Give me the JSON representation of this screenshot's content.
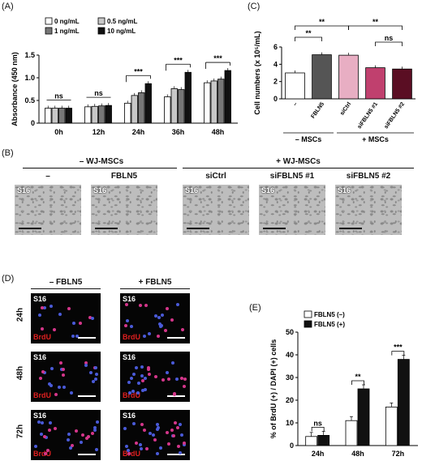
{
  "panels": {
    "a": "(A)",
    "b": "(B)",
    "c": "(C)",
    "d": "(D)",
    "e": "(E)"
  },
  "chart_data": [
    {
      "id": "A",
      "type": "bar",
      "ylabel": "Absorbance (450 nm)",
      "ylim": [
        0,
        1.5
      ],
      "yticks": [
        "0",
        "0.5",
        "1.0",
        "1.5"
      ],
      "categories": [
        "0h",
        "12h",
        "24h",
        "36h",
        "48h"
      ],
      "series": [
        {
          "name": "0 ng/mL",
          "color": "#ffffff",
          "values": [
            0.33,
            0.36,
            0.44,
            0.58,
            0.89
          ]
        },
        {
          "name": "0.5 ng/mL",
          "color": "#c8c8c8",
          "values": [
            0.33,
            0.37,
            0.61,
            0.76,
            0.93
          ]
        },
        {
          "name": "1 ng/mL",
          "color": "#777777",
          "values": [
            0.33,
            0.38,
            0.67,
            0.74,
            0.97
          ]
        },
        {
          "name": "10 ng/mL",
          "color": "#111111",
          "values": [
            0.33,
            0.39,
            0.87,
            1.12,
            1.16
          ]
        }
      ],
      "significance": [
        "ns",
        "ns",
        "***",
        "***",
        "***"
      ]
    },
    {
      "id": "C",
      "type": "bar",
      "ylabel": "Cell numbers (x 10⁵/mL)",
      "ylim": [
        0,
        6
      ],
      "yticks": [
        "0",
        "2",
        "4",
        "6"
      ],
      "categories": [
        "–",
        "FBLN5",
        "siCtrl",
        "siFBLN5 #1",
        "siFBLN5 #2"
      ],
      "values": [
        3.0,
        5.1,
        5.05,
        3.6,
        3.45
      ],
      "colors": [
        "#ffffff",
        "#555555",
        "#e8aec3",
        "#c0406e",
        "#5a0e23"
      ],
      "groups": [
        "– MSCs",
        "+ MSCs"
      ],
      "significance": [
        "**",
        "**",
        "**",
        "ns"
      ]
    },
    {
      "id": "E",
      "type": "bar",
      "ylabel": "% of BrdU (+) / DAPI (+) cells",
      "ylim": [
        0,
        50
      ],
      "yticks": [
        "0",
        "10",
        "20",
        "30",
        "40",
        "50"
      ],
      "categories": [
        "24h",
        "48h",
        "72h"
      ],
      "series": [
        {
          "name": "FBLN5 (–)",
          "color": "#ffffff",
          "values": [
            4,
            11,
            17
          ]
        },
        {
          "name": "FBLN5 (+)",
          "color": "#111111",
          "values": [
            4.5,
            25,
            38
          ]
        }
      ],
      "significance": [
        "ns",
        "**",
        "***"
      ]
    }
  ],
  "panelB": {
    "group_left": "– WJ-MSCs",
    "group_right": "+ WJ-MSCs",
    "cols": [
      "–",
      "FBLN5",
      "siCtrl",
      "siFBLN5 #1",
      "siFBLN5 #2"
    ],
    "tag": "S16"
  },
  "panelD": {
    "cols": [
      "– FBLN5",
      "+ FBLN5"
    ],
    "rows": [
      "24h",
      "48h",
      "72h"
    ],
    "tag": "S16",
    "stain": "BrdU"
  }
}
